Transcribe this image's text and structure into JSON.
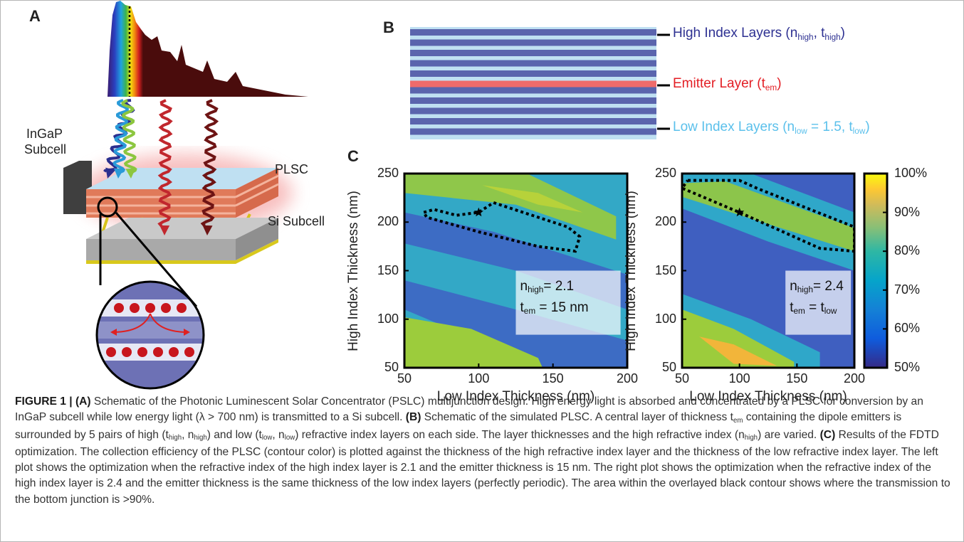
{
  "panel_a": {
    "label": "A",
    "ingap_label": [
      "InGaP",
      "Subcell"
    ],
    "plsc_label": "PLSC",
    "si_label": "Si Subcell"
  },
  "panel_b": {
    "label": "B",
    "layer_labels": [
      {
        "color": "#2e3192",
        "runs": [
          "High Index Layers (n",
          {
            "sub": "high"
          },
          ", t",
          {
            "sub": "high"
          },
          ")"
        ]
      },
      {
        "color": "#e31e24",
        "runs": [
          "Emitter Layer (t",
          {
            "sub": "em"
          },
          ")"
        ]
      },
      {
        "color": "#5bc0eb",
        "runs": [
          "Low Index Layers (n",
          {
            "sub": "low"
          },
          " = 1.5, t",
          {
            "sub": "low"
          },
          ")"
        ]
      }
    ]
  },
  "panel_c": {
    "label": "C",
    "colorbar": {
      "lim": [
        50,
        100
      ],
      "ticks": [
        {
          "value": 100,
          "label": "100%"
        },
        {
          "value": 90,
          "label": "90%"
        },
        {
          "value": 80,
          "label": "80%"
        },
        {
          "value": 70,
          "label": "70%"
        },
        {
          "value": 60,
          "label": "60%"
        },
        {
          "value": 50,
          "label": "50%"
        }
      ]
    },
    "plots": [
      {
        "xlabel": "Low Index Thickness (nm)",
        "ylabel": "High Index Thickness (nm)",
        "xlim": [
          50,
          200
        ],
        "ylim": [
          50,
          250
        ],
        "xticks": [
          50,
          100,
          150,
          200
        ],
        "yticks": [
          250,
          200,
          150,
          100,
          50
        ],
        "marker": {
          "x": 100,
          "y": 210
        },
        "annotation": [
          [
            "n",
            {
              "sub": "high"
            },
            "= 2.1"
          ],
          [
            "t",
            {
              "sub": "em"
            },
            " = 15 nm"
          ]
        ]
      },
      {
        "xlabel": "Low Index Thickness (nm)",
        "ylabel": "High Index Thickness (nm)",
        "xlim": [
          50,
          200
        ],
        "ylim": [
          50,
          250
        ],
        "xticks": [
          50,
          100,
          150,
          200
        ],
        "yticks": [
          250,
          200,
          150,
          100,
          50
        ],
        "marker": {
          "x": 100,
          "y": 210
        },
        "annotation": [
          [
            "n",
            {
              "sub": "high"
            },
            "= 2.4"
          ],
          [
            "t",
            {
              "sub": "em"
            },
            " = t",
            {
              "sub": "low"
            }
          ]
        ]
      }
    ]
  },
  "caption": [
    {
      "bold": "FIGURE 1 | (A)"
    },
    " Schematic of the Photonic Luminescent Solar Concentrator (PSLC) multijunction design. High energy light is absorbed and concentrated by a PLSC for conversion by an InGaP subcell while low energy light (λ > 700 nm) is transmitted to a Si subcell. ",
    {
      "bold": "(B)"
    },
    " Schematic of the simulated PLSC. A central layer of thickness t",
    {
      "sub": "em"
    },
    " containing the dipole emitters is surrounded by 5 pairs of high (t",
    {
      "sub": "high"
    },
    ", n",
    {
      "sub": "high"
    },
    ") and low (t",
    {
      "sub": "low"
    },
    ", n",
    {
      "sub": "low"
    },
    ") refractive index layers on each side. The layer thicknesses and the high refractive index (n",
    {
      "sub": "high"
    },
    ") are varied. ",
    {
      "bold": "(C)"
    },
    " Results of the FDTD optimization. The collection efficiency of the PLSC (contour color) is plotted against the thickness of the high refractive index layer and the thickness of the low refractive index layer. The left plot shows the optimization when the refractive index of the high index layer is 2.1 and the emitter thickness is 15 nm. The right plot shows the optimization when the refractive index of the high index layer is 2.4 and the emitter thickness is the same thickness of the low index layers (perfectly periodic). The area within the overlayed black contour shows where the transmission to the bottom junction is >90%."
  ]
}
